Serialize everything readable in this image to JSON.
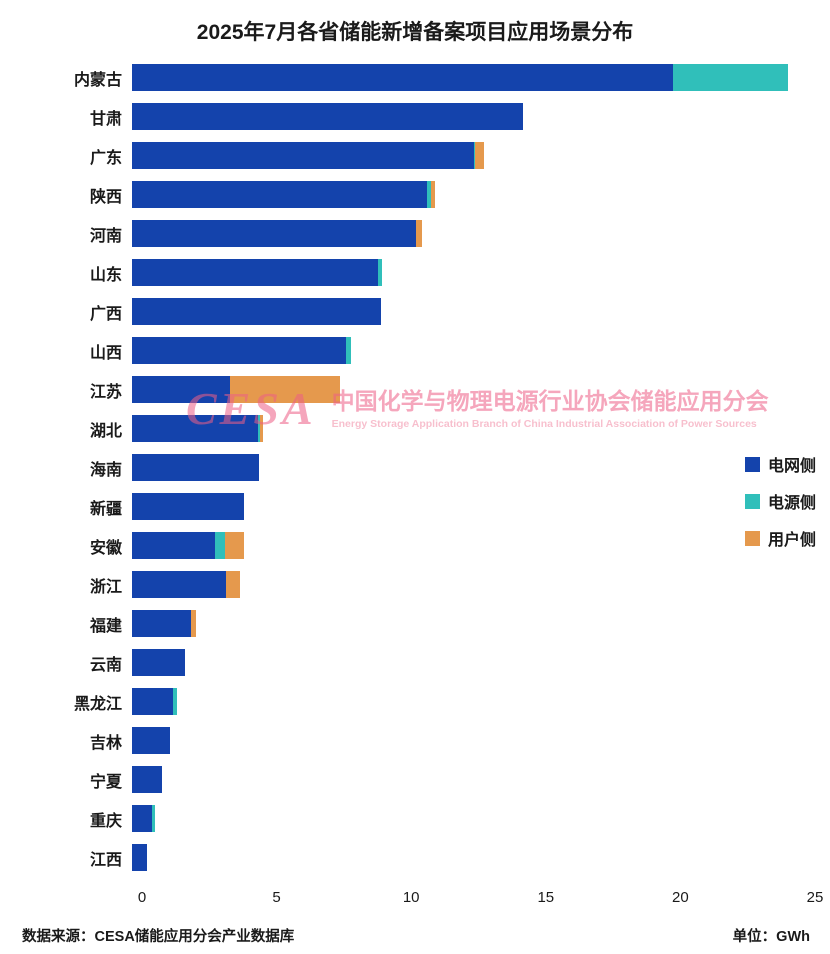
{
  "title": "2025年7月各省储能新增备案项目应用场景分布",
  "footer": {
    "source": "数据来源：CESA储能应用分会产业数据库",
    "unit": "单位：GWh"
  },
  "watermark": {
    "logo": "CESA",
    "cn": "中国化学与物理电源行业协会储能应用分会",
    "en": "Energy Storage Application Branch of China Industrial Association of Power Sources"
  },
  "legend": [
    {
      "label": "电网侧",
      "color": "#1443ac"
    },
    {
      "label": "电源侧",
      "color": "#30bfba"
    },
    {
      "label": "用户侧",
      "color": "#e5994d"
    }
  ],
  "chart_data": {
    "type": "bar",
    "orientation": "horizontal",
    "title": "2025年7月各省储能新增备案项目应用场景分布",
    "unit": "GWh",
    "xlim": [
      0,
      25
    ],
    "xticks": [
      0,
      5,
      10,
      15,
      20,
      25
    ],
    "legend_position": "right",
    "grid": false,
    "categories": [
      "内蒙古",
      "甘肃",
      "广东",
      "陕西",
      "河南",
      "山东",
      "广西",
      "山西",
      "江苏",
      "湖北",
      "海南",
      "新疆",
      "安徽",
      "浙江",
      "福建",
      "云南",
      "黑龙江",
      "吉林",
      "宁夏",
      "重庆",
      "江西"
    ],
    "series": [
      {
        "name": "电网侧",
        "key": "grid-side",
        "color": "#1443ac",
        "values": [
          19.8,
          14.3,
          12.5,
          10.8,
          10.4,
          9.0,
          9.1,
          7.85,
          3.6,
          4.6,
          4.65,
          4.1,
          3.05,
          3.45,
          2.15,
          1.95,
          1.5,
          1.4,
          1.1,
          0.75,
          0.55
        ]
      },
      {
        "name": "电源侧",
        "key": "source-side",
        "color": "#30bfba",
        "values": [
          4.2,
          0,
          0.05,
          0.15,
          0,
          0.15,
          0,
          0.15,
          0,
          0.1,
          0,
          0,
          0.35,
          0,
          0,
          0,
          0.15,
          0,
          0,
          0.1,
          0
        ]
      },
      {
        "name": "用户侧",
        "key": "user-side",
        "color": "#e5994d",
        "values": [
          0,
          0,
          0.35,
          0.15,
          0.2,
          0,
          0,
          0,
          4.0,
          0.1,
          0,
          0,
          0.7,
          0.5,
          0.2,
          0,
          0,
          0,
          0,
          0,
          0
        ]
      }
    ]
  }
}
